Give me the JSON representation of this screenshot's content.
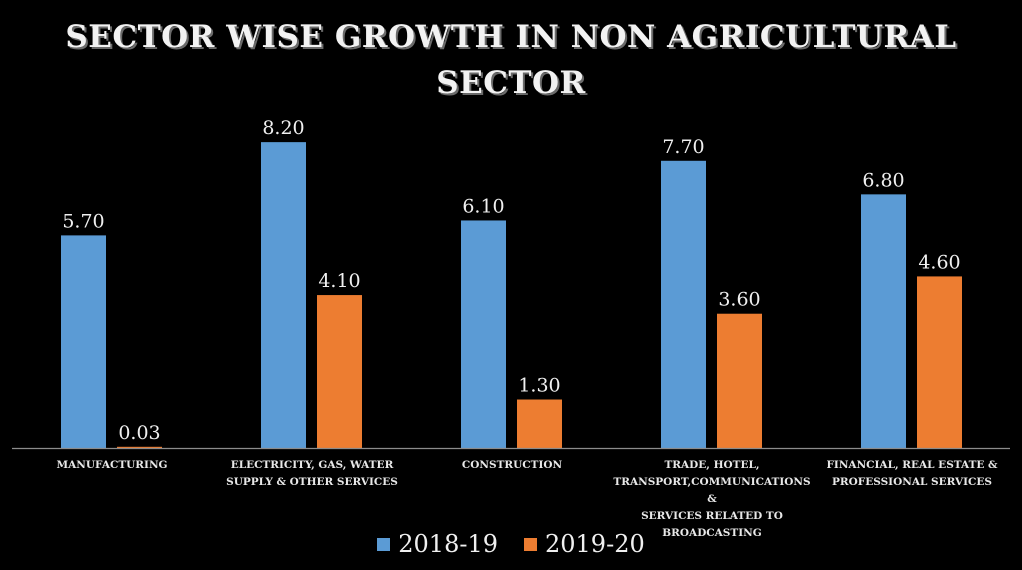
{
  "chart_data": {
    "type": "bar",
    "title": "SECTOR WISE GROWTH IN NON AGRICULTURAL SECTOR",
    "title_lines": [
      "SECTOR WISE GROWTH IN NON AGRICULTURAL",
      "SECTOR"
    ],
    "xlabel": "",
    "ylabel": "",
    "ylim": [
      0,
      9
    ],
    "grid": false,
    "legend_position": "bottom",
    "categories": [
      "Manufacturing",
      "Electricity, Gas, Water Supply & Other Services",
      "Construction",
      "Trade, Hotel, Transport,Communications & Services Related to Broadcasting",
      "Financial, Real Estate & Professional Services"
    ],
    "category_label_lines": [
      [
        "Manufacturing"
      ],
      [
        "Electricity, Gas, Water",
        "Supply & Other Services"
      ],
      [
        "Construction"
      ],
      [
        "Trade, Hotel,",
        "Transport,Communications &",
        "Services Related to",
        "Broadcasting"
      ],
      [
        "Financial, Real Estate &",
        "Professional Services"
      ]
    ],
    "series": [
      {
        "name": "2018-19",
        "color": "#5b9bd5",
        "values": [
          5.7,
          8.2,
          6.1,
          7.7,
          6.8
        ],
        "labels": [
          "5.70",
          "8.20",
          "6.10",
          "7.70",
          "6.80"
        ]
      },
      {
        "name": "2019-20",
        "color": "#ed7d31",
        "values": [
          0.03,
          4.1,
          1.3,
          3.6,
          4.6
        ],
        "labels": [
          "0.03",
          "4.10",
          "1.30",
          "3.60",
          "4.60"
        ]
      }
    ]
  }
}
